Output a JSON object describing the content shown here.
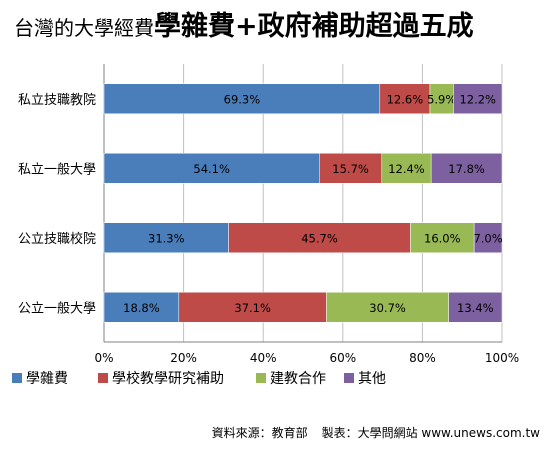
{
  "header": {
    "title_prefix": "台灣的大學經費",
    "title_main": "學雜費+政府補助超過五成"
  },
  "footer": {
    "source": "資料來源：教育部",
    "credit": "製表：大學問網站 www.unews.com.tw"
  },
  "colors": {
    "tuition": "#4a7ebb",
    "research": "#be4b48",
    "cooperation": "#98b954",
    "other": "#7d60a0",
    "grid": "#c0c0c0"
  },
  "chart_data": {
    "type": "bar",
    "orientation": "horizontal",
    "stacked": true,
    "categories": [
      "私立技職教院",
      "私立一般大學",
      "公立技職校院",
      "公立一般大學"
    ],
    "series": [
      {
        "name": "學雜費",
        "values": [
          69.3,
          54.1,
          31.3,
          18.8
        ],
        "labels": [
          "69.3%",
          "54.1%",
          "31.3%",
          "18.8%"
        ]
      },
      {
        "name": "學校教學研究補助",
        "values": [
          12.6,
          15.7,
          45.7,
          37.1
        ],
        "labels": [
          "12.6%",
          "15.7%",
          "45.7%",
          "37.1%"
        ]
      },
      {
        "name": "建教合作",
        "values": [
          5.9,
          12.4,
          16.0,
          30.7
        ],
        "labels": [
          "5.9%",
          "12.4%",
          "16.0%",
          "30.7%"
        ]
      },
      {
        "name": "其他",
        "values": [
          12.2,
          17.8,
          7.0,
          13.4
        ],
        "labels": [
          "12.2%",
          "17.8%",
          "7.0%",
          "13.4%"
        ]
      }
    ],
    "x_ticks": [
      "0%",
      "20%",
      "40%",
      "60%",
      "80%",
      "100%"
    ],
    "xlim": [
      0,
      100
    ],
    "grid": true,
    "legend_position": "bottom"
  }
}
